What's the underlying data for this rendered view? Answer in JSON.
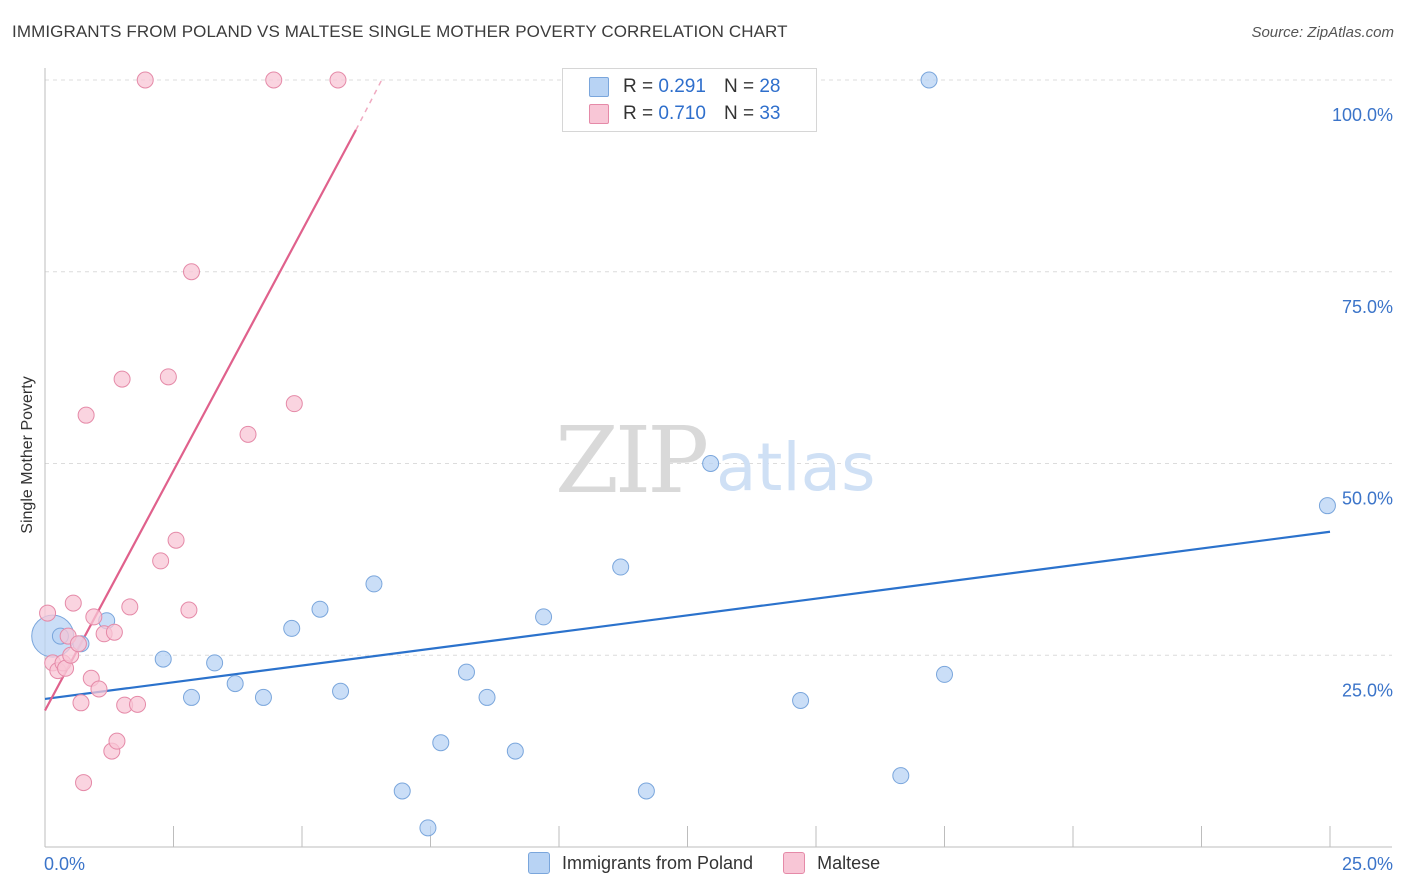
{
  "title": "IMMIGRANTS FROM POLAND VS MALTESE SINGLE MOTHER POVERTY CORRELATION CHART",
  "source": "Source: ZipAtlas.com",
  "watermark": {
    "zip": "ZIP",
    "atlas": "atlas"
  },
  "colors": {
    "blue_fill": "#b8d3f4",
    "blue_stroke": "#7aa6dc",
    "blue_line": "#2b72cc",
    "pink_fill": "#f8c6d6",
    "pink_stroke": "#e58aa8",
    "pink_line": "#e0618c",
    "grid": "#dcdcdc",
    "tick_label": "#3b74c9"
  },
  "legend": {
    "r_label": "R =",
    "n_label": "N =",
    "rows": [
      {
        "r": "0.291",
        "n": "28",
        "color": "#b8d3f4",
        "border": "#7aa6dc"
      },
      {
        "r": "0.710",
        "n": "33",
        "color": "#f8c6d6",
        "border": "#e58aa8"
      }
    ]
  },
  "bottom_legend": [
    {
      "label": "Immigrants from Poland",
      "color": "#b8d3f4",
      "border": "#7aa6dc"
    },
    {
      "label": "Maltese",
      "color": "#f8c6d6",
      "border": "#e58aa8"
    }
  ],
  "chart_data": {
    "type": "scatter",
    "title": "IMMIGRANTS FROM POLAND VS MALTESE SINGLE MOTHER POVERTY CORRELATION CHART",
    "xlabel": "",
    "ylabel": "Single Mother Poverty",
    "xlim": [
      0,
      25
    ],
    "ylim": [
      0,
      102
    ],
    "x_tick_labels": [
      {
        "value": 0,
        "label": "0.0%"
      },
      {
        "value": 25,
        "label": "25.0%"
      }
    ],
    "y_tick_labels": [
      {
        "value": 25,
        "label": "25.0%"
      },
      {
        "value": 50,
        "label": "50.0%"
      },
      {
        "value": 75,
        "label": "75.0%"
      },
      {
        "value": 100,
        "label": "100.0%"
      }
    ],
    "series": [
      {
        "name": "Immigrants from Poland",
        "r": 0.291,
        "n": 28,
        "trend": {
          "x0": 0,
          "y0": 19.3,
          "x1": 25,
          "y1": 41.1
        },
        "points": [
          {
            "x": 0.15,
            "y": 27.5,
            "size": "large"
          },
          {
            "x": 1.2,
            "y": 29.5
          },
          {
            "x": 0.7,
            "y": 26.5
          },
          {
            "x": 0.3,
            "y": 27.5
          },
          {
            "x": 2.3,
            "y": 24.5
          },
          {
            "x": 2.85,
            "y": 19.5
          },
          {
            "x": 3.3,
            "y": 24.0
          },
          {
            "x": 3.7,
            "y": 21.3
          },
          {
            "x": 4.25,
            "y": 19.5
          },
          {
            "x": 4.8,
            "y": 28.5
          },
          {
            "x": 5.35,
            "y": 31.0
          },
          {
            "x": 5.75,
            "y": 20.3
          },
          {
            "x": 6.4,
            "y": 34.3
          },
          {
            "x": 6.95,
            "y": 7.3
          },
          {
            "x": 7.45,
            "y": 2.5
          },
          {
            "x": 7.7,
            "y": 13.6
          },
          {
            "x": 8.2,
            "y": 22.8
          },
          {
            "x": 8.6,
            "y": 19.5
          },
          {
            "x": 9.15,
            "y": 12.5
          },
          {
            "x": 9.7,
            "y": 30.0
          },
          {
            "x": 11.2,
            "y": 36.5
          },
          {
            "x": 11.7,
            "y": 7.3
          },
          {
            "x": 12.95,
            "y": 50.0
          },
          {
            "x": 14.7,
            "y": 19.1
          },
          {
            "x": 16.65,
            "y": 9.3
          },
          {
            "x": 17.2,
            "y": 100.0
          },
          {
            "x": 17.5,
            "y": 22.5
          },
          {
            "x": 24.95,
            "y": 44.5
          }
        ]
      },
      {
        "name": "Maltese",
        "r": 0.71,
        "n": 33,
        "trend": {
          "x0": 0,
          "y0": 17.8,
          "x1": 6.05,
          "y1": 93.5
        },
        "trend_dashed": {
          "x0": 6.05,
          "y0": 93.5,
          "x1": 6.55,
          "y1": 100.0
        },
        "points": [
          {
            "x": 0.05,
            "y": 30.5
          },
          {
            "x": 0.15,
            "y": 24.0
          },
          {
            "x": 0.25,
            "y": 23.0
          },
          {
            "x": 0.35,
            "y": 24.0
          },
          {
            "x": 0.4,
            "y": 23.3
          },
          {
            "x": 0.45,
            "y": 27.5
          },
          {
            "x": 0.5,
            "y": 25.0
          },
          {
            "x": 0.55,
            "y": 31.8
          },
          {
            "x": 0.65,
            "y": 26.5
          },
          {
            "x": 0.7,
            "y": 18.8
          },
          {
            "x": 0.75,
            "y": 8.4
          },
          {
            "x": 0.8,
            "y": 56.3
          },
          {
            "x": 0.9,
            "y": 22.0
          },
          {
            "x": 0.95,
            "y": 30.0
          },
          {
            "x": 1.05,
            "y": 20.6
          },
          {
            "x": 1.15,
            "y": 27.8
          },
          {
            "x": 1.3,
            "y": 12.5
          },
          {
            "x": 1.35,
            "y": 28.0
          },
          {
            "x": 1.4,
            "y": 13.8
          },
          {
            "x": 1.5,
            "y": 61.0
          },
          {
            "x": 1.55,
            "y": 18.5
          },
          {
            "x": 1.65,
            "y": 31.3
          },
          {
            "x": 1.8,
            "y": 18.6
          },
          {
            "x": 1.95,
            "y": 100.0
          },
          {
            "x": 2.25,
            "y": 37.3
          },
          {
            "x": 2.4,
            "y": 61.3
          },
          {
            "x": 2.55,
            "y": 40.0
          },
          {
            "x": 2.8,
            "y": 30.9
          },
          {
            "x": 2.85,
            "y": 75.0
          },
          {
            "x": 3.95,
            "y": 53.8
          },
          {
            "x": 4.45,
            "y": 100.0
          },
          {
            "x": 4.85,
            "y": 57.8
          },
          {
            "x": 5.7,
            "y": 100.0
          }
        ]
      }
    ]
  }
}
